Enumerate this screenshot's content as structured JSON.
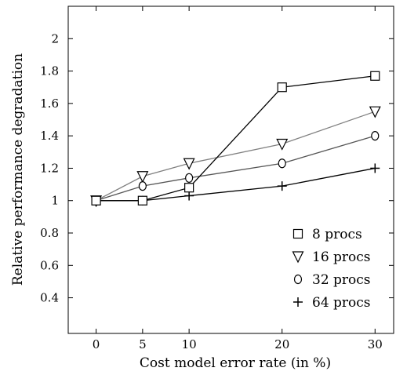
{
  "chart_data": {
    "type": "line",
    "title": "",
    "xlabel": "Cost model error rate (in %)",
    "ylabel": "Relative performance degradation",
    "x": [
      0,
      5,
      10,
      20,
      30
    ],
    "x_tick_labels": [
      "0",
      "5",
      "10",
      "20",
      "30"
    ],
    "xlim": [
      -3,
      32
    ],
    "y_tick_values": [
      0.4,
      0.6,
      0.8,
      1,
      1.2,
      1.4,
      1.6,
      1.8,
      2
    ],
    "y_tick_labels": [
      "0.4",
      "0.6",
      "0.8",
      "1",
      "1.2",
      "1.4",
      "1.6",
      "1.8",
      "2"
    ],
    "ylim": [
      0.18,
      2.2
    ],
    "grid": false,
    "legend_position": "bottom-right",
    "series": [
      {
        "name": "8 procs",
        "marker": "square",
        "color": "#000000",
        "values": [
          1.0,
          1.0,
          1.08,
          1.7,
          1.77
        ]
      },
      {
        "name": "16 procs",
        "marker": "triangle-down",
        "color": "#808080",
        "values": [
          1.0,
          1.15,
          1.23,
          1.35,
          1.55
        ]
      },
      {
        "name": "32 procs",
        "marker": "circle",
        "color": "#555555",
        "values": [
          1.0,
          1.09,
          1.14,
          1.23,
          1.4
        ]
      },
      {
        "name": "64 procs",
        "marker": "plus",
        "color": "#000000",
        "values": [
          1.0,
          1.0,
          1.03,
          1.09,
          1.2
        ]
      }
    ]
  }
}
